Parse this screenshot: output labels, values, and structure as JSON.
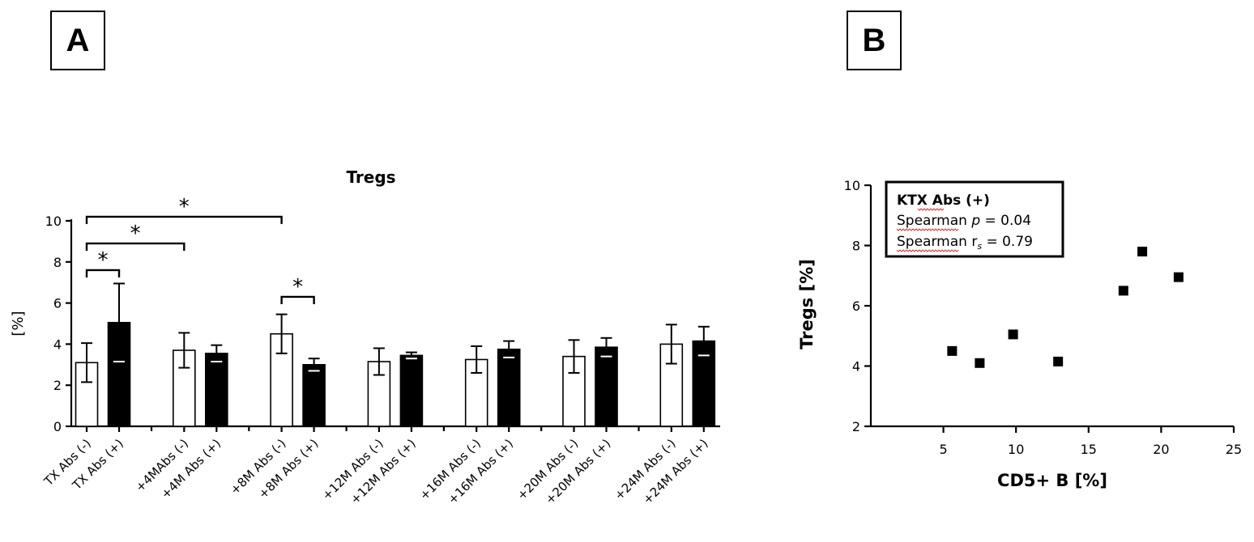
{
  "panels": {
    "a": "A",
    "b": "B"
  },
  "chart_data": [
    {
      "type": "bar",
      "title": "Tregs",
      "ylabel": "[%]",
      "xlabel": "",
      "ylim": [
        0,
        10
      ],
      "yticks": [
        0,
        2,
        4,
        6,
        8,
        10
      ],
      "groups": [
        {
          "labels": [
            "TX Abs (-)",
            "TX Abs (+)"
          ],
          "values": [
            3.1,
            5.05
          ],
          "errors": [
            0.95,
            1.9
          ]
        },
        {
          "labels": [
            "+4MAbs (-)",
            "+4M Abs (+)"
          ],
          "values": [
            3.7,
            3.55
          ],
          "errors": [
            0.85,
            0.4
          ]
        },
        {
          "labels": [
            "+8M Abs (-)",
            "+8M Abs (+)"
          ],
          "values": [
            4.5,
            3.0
          ],
          "errors": [
            0.95,
            0.3
          ]
        },
        {
          "labels": [
            "+12M Abs (-)",
            "+12M Abs (+)"
          ],
          "values": [
            3.15,
            3.45
          ],
          "errors": [
            0.65,
            0.15
          ]
        },
        {
          "labels": [
            "+16M Abs (-)",
            "+16M Abs (+)"
          ],
          "values": [
            3.25,
            3.75
          ],
          "errors": [
            0.65,
            0.4
          ]
        },
        {
          "labels": [
            "+20M Abs (-)",
            "+20M Abs (+)"
          ],
          "values": [
            3.4,
            3.85
          ],
          "errors": [
            0.8,
            0.45
          ]
        },
        {
          "labels": [
            "+24M Abs (-)",
            "+24M Abs (+)"
          ],
          "values": [
            4.0,
            4.15
          ],
          "errors": [
            0.95,
            0.7
          ]
        }
      ],
      "series": [
        {
          "name": "Abs (-)",
          "fill": "#ffffff"
        },
        {
          "name": "Abs (+)",
          "fill": "#000000"
        }
      ],
      "significance": [
        {
          "from": "TX Abs (-)",
          "to": "TX Abs (+)",
          "level": 7.6,
          "label": "*"
        },
        {
          "from": "TX Abs (-)",
          "to": "+4MAbs (-)",
          "level": 8.9,
          "label": "*"
        },
        {
          "from": "TX Abs (-)",
          "to": "+8M Abs (-)",
          "level": 10.2,
          "label": "*"
        },
        {
          "from": "+8M Abs (-)",
          "to": "+8M Abs (+)",
          "level": 6.3,
          "label": "*"
        }
      ]
    },
    {
      "type": "scatter",
      "title": "",
      "xlabel": "CD5+ B [%]",
      "ylabel": "Tregs [%]",
      "xlim": [
        0,
        25
      ],
      "ylim": [
        2,
        10
      ],
      "xticks": [
        5,
        10,
        15,
        20,
        25
      ],
      "yticks": [
        2,
        4,
        6,
        8,
        10
      ],
      "points": [
        {
          "x": 5.6,
          "y": 4.5
        },
        {
          "x": 7.5,
          "y": 4.1
        },
        {
          "x": 9.8,
          "y": 5.05
        },
        {
          "x": 12.9,
          "y": 4.15
        },
        {
          "x": 17.4,
          "y": 6.5
        },
        {
          "x": 18.7,
          "y": 7.8
        },
        {
          "x": 21.2,
          "y": 6.95
        }
      ],
      "annotation": {
        "line1": "KTX Abs (+)",
        "line2_prefix": "Spearman ",
        "line2_var": "p",
        "line2_value": " = 0.04",
        "line3_prefix": "Spearman ",
        "line3_var": "r",
        "line3_sub": "s",
        "line3_value": " = 0.79"
      }
    }
  ]
}
